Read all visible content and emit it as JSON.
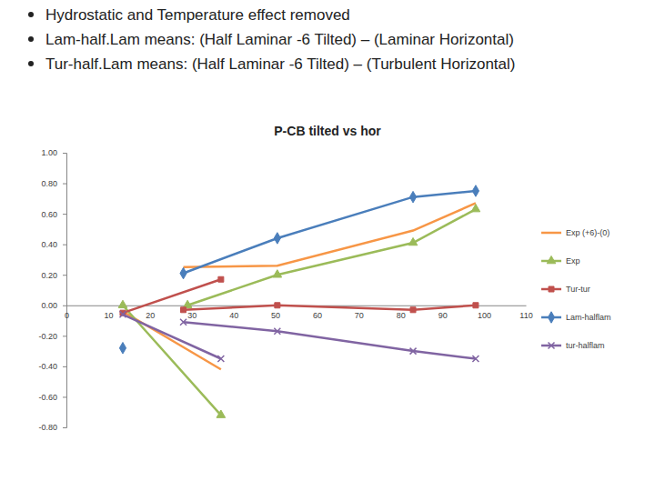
{
  "chart_data": {
    "type": "line",
    "title": "P-CB tilted vs hor",
    "annotations": [
      "Hydrostatic and Temperature effect removed",
      "Lam-half.Lam means: (Half Laminar -6 Tilted) – (Laminar Horizontal)",
      "Tur-half.Lam means: (Half Laminar -6 Tilted) – (Turbulent Horizontal)"
    ],
    "xlim": [
      0,
      110
    ],
    "xticks": [
      0,
      10,
      20,
      30,
      40,
      50,
      60,
      70,
      80,
      90,
      100,
      110
    ],
    "ylim": [
      -0.8,
      1.0
    ],
    "yticks": [
      {
        "value": 1.0,
        "label": "1.00"
      },
      {
        "value": 0.8,
        "label": "0.80"
      },
      {
        "value": 0.6,
        "label": "0.60"
      },
      {
        "value": 0.4,
        "label": "0.40"
      },
      {
        "value": 0.2,
        "label": "0.20"
      },
      {
        "value": 0,
        "label": "0.00"
      },
      {
        "value": -0.2,
        "label": "-0.20"
      },
      {
        "value": -0.4,
        "label": "-0.40"
      },
      {
        "value": -0.6,
        "label": "-0.60"
      },
      {
        "value": -0.8,
        "label": "-0.80"
      }
    ],
    "grid": false,
    "legend": "right",
    "series": [
      {
        "name": "Exp (+6)-(0)",
        "color": "#f79646",
        "marker": "none",
        "x": [
          13.5,
          37,
          null,
          28,
          50.5,
          83,
          98
        ],
        "values": [
          -0.04,
          -0.42,
          null,
          0.25,
          0.26,
          0.49,
          0.67
        ]
      },
      {
        "name": "Exp",
        "color": "#9bbb59",
        "marker": "triangle",
        "x": [
          13.5,
          37,
          null,
          29,
          50.5,
          83,
          98
        ],
        "values": [
          0.0,
          -0.72,
          null,
          0.0,
          0.2,
          0.41,
          0.63
        ]
      },
      {
        "name": "Tur-tur",
        "color": "#c0504d",
        "marker": "square",
        "x": [
          13.5,
          37,
          null,
          28,
          50.5,
          83,
          98
        ],
        "values": [
          -0.05,
          0.17,
          null,
          -0.03,
          0.0,
          -0.03,
          0.0
        ]
      },
      {
        "name": "Lam-halflam",
        "color": "#4a7ebb",
        "marker": "diamond",
        "x": [
          13.5,
          null,
          28,
          50.5,
          83,
          98
        ],
        "values": [
          -0.28,
          null,
          0.21,
          0.44,
          0.71,
          0.75
        ]
      },
      {
        "name": "tur-halflam",
        "color": "#8064a2",
        "marker": "x",
        "x": [
          13.5,
          37,
          null,
          28,
          50.5,
          83,
          98
        ],
        "values": [
          -0.06,
          -0.35,
          null,
          -0.11,
          -0.17,
          -0.3,
          -0.35
        ]
      }
    ]
  }
}
